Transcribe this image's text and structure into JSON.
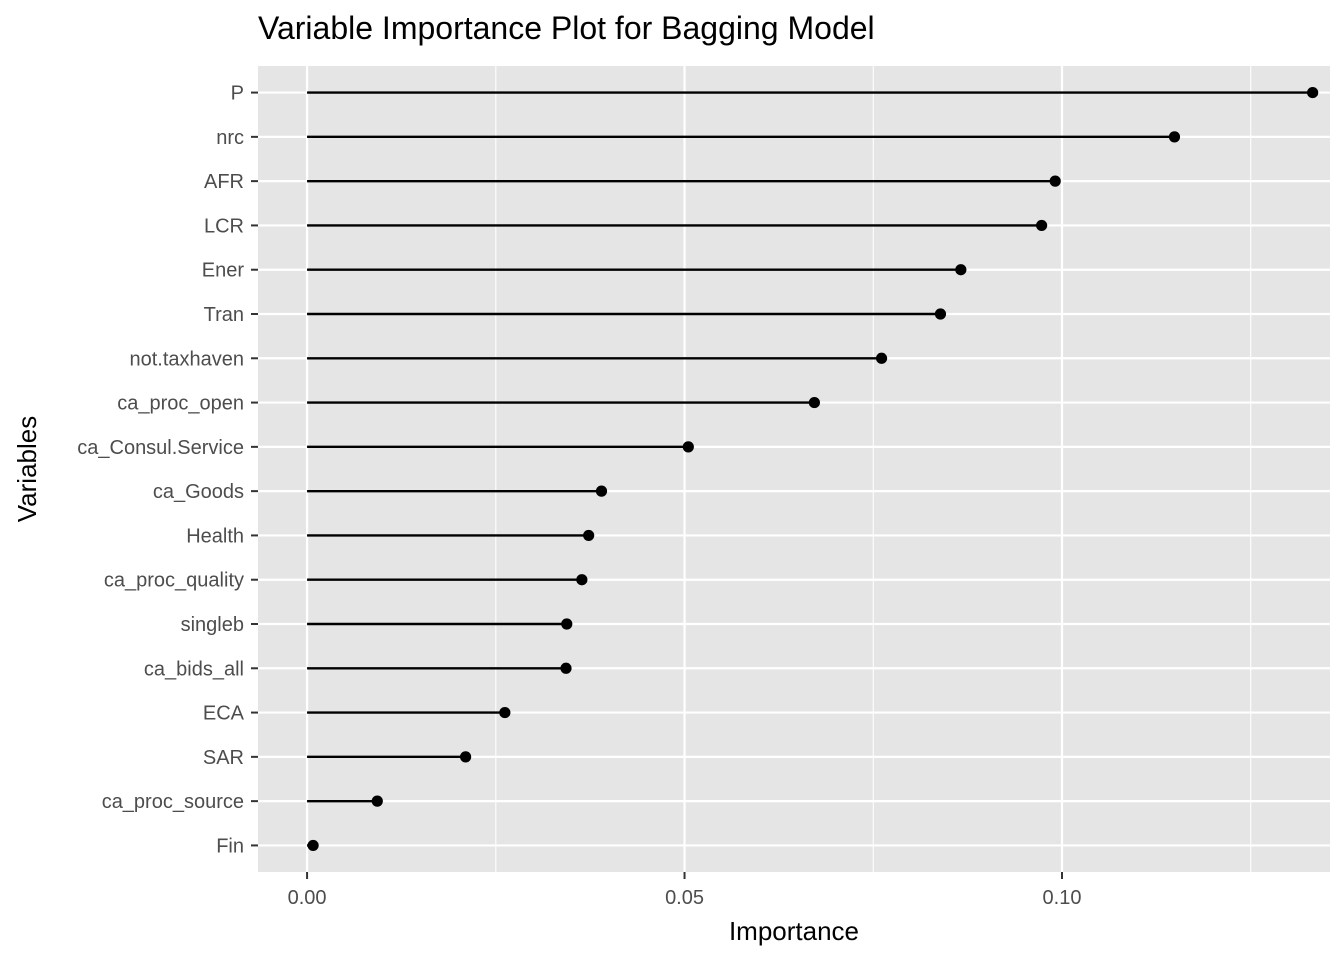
{
  "chart_data": {
    "type": "lollipop",
    "title": "Variable Importance Plot for Bagging Model",
    "xlabel": "Importance",
    "ylabel": "Variables",
    "xlim": [
      -0.0065,
      0.1355
    ],
    "x_ticks": [
      0.0,
      0.05,
      0.1
    ],
    "x_tick_labels": [
      "0.00",
      "0.05",
      "0.10"
    ],
    "x_minor_ticks": [
      0.025,
      0.075,
      0.125
    ],
    "grid": true,
    "categories": [
      "P",
      "nrc",
      "AFR",
      "LCR",
      "Ener",
      "Tran",
      "not.taxhaven",
      "ca_proc_open",
      "ca_Consul.Service",
      "ca_Goods",
      "Health",
      "ca_proc_quality",
      "singleb",
      "ca_bids_all",
      "ECA",
      "SAR",
      "ca_proc_source",
      "Fin"
    ],
    "values": [
      0.1332,
      0.1149,
      0.0991,
      0.0973,
      0.0866,
      0.0839,
      0.0761,
      0.0672,
      0.0505,
      0.039,
      0.0373,
      0.0364,
      0.0344,
      0.0343,
      0.0262,
      0.021,
      0.0093,
      0.0008
    ],
    "colors": {
      "panel": "#e5e5e5",
      "grid": "#ffffff",
      "mark": "#000000",
      "tick": "#333333",
      "tick_label": "#4d4d4d"
    }
  }
}
